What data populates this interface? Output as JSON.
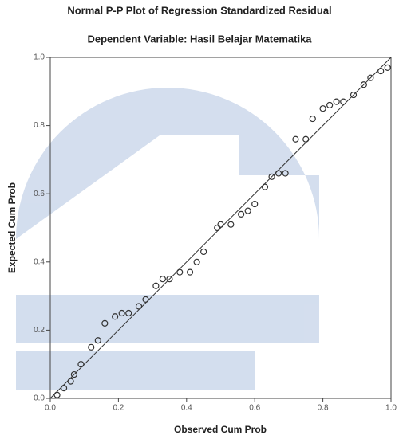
{
  "chart_data": {
    "type": "scatter",
    "title": "Normal P-P Plot of Regression Standardized Residual",
    "subtitle": "Dependent Variable: Hasil Belajar Matematika",
    "x_label": "Observed Cum Prob",
    "y_label": "Expected Cum Prob",
    "color": "#333333",
    "xlim": [
      0,
      1
    ],
    "ylim": [
      0,
      1
    ],
    "xticks": [
      {
        "value": 0,
        "label": "0.0"
      },
      0.2,
      0.4,
      0.6,
      0.8,
      {
        "value": 1,
        "label": "1.0"
      }
    ],
    "yticks": [
      {
        "value": 0,
        "label": "0.0"
      },
      0.2,
      0.4,
      0.6,
      0.8,
      {
        "value": 1,
        "label": "1.0"
      }
    ],
    "x": [
      0.02,
      0.04,
      0.06,
      0.07,
      0.09,
      0.12,
      0.14,
      0.16,
      0.19,
      0.21,
      0.23,
      0.26,
      0.28,
      0.31,
      0.33,
      0.35,
      0.38,
      0.41,
      0.43,
      0.45,
      0.49,
      0.5,
      0.53,
      0.56,
      0.58,
      0.6,
      0.63,
      0.65,
      0.67,
      0.69,
      0.72,
      0.75,
      0.77,
      0.8,
      0.82,
      0.84,
      0.86,
      0.89,
      0.92,
      0.94,
      0.97,
      0.99
    ],
    "values": [
      0.01,
      0.03,
      0.05,
      0.07,
      0.1,
      0.15,
      0.17,
      0.22,
      0.24,
      0.25,
      0.25,
      0.27,
      0.29,
      0.33,
      0.35,
      0.35,
      0.37,
      0.37,
      0.4,
      0.43,
      0.5,
      0.51,
      0.51,
      0.54,
      0.55,
      0.57,
      0.62,
      0.65,
      0.66,
      0.66,
      0.76,
      0.76,
      0.82,
      0.85,
      0.86,
      0.87,
      0.87,
      0.89,
      0.92,
      0.94,
      0.96,
      0.97
    ]
  }
}
